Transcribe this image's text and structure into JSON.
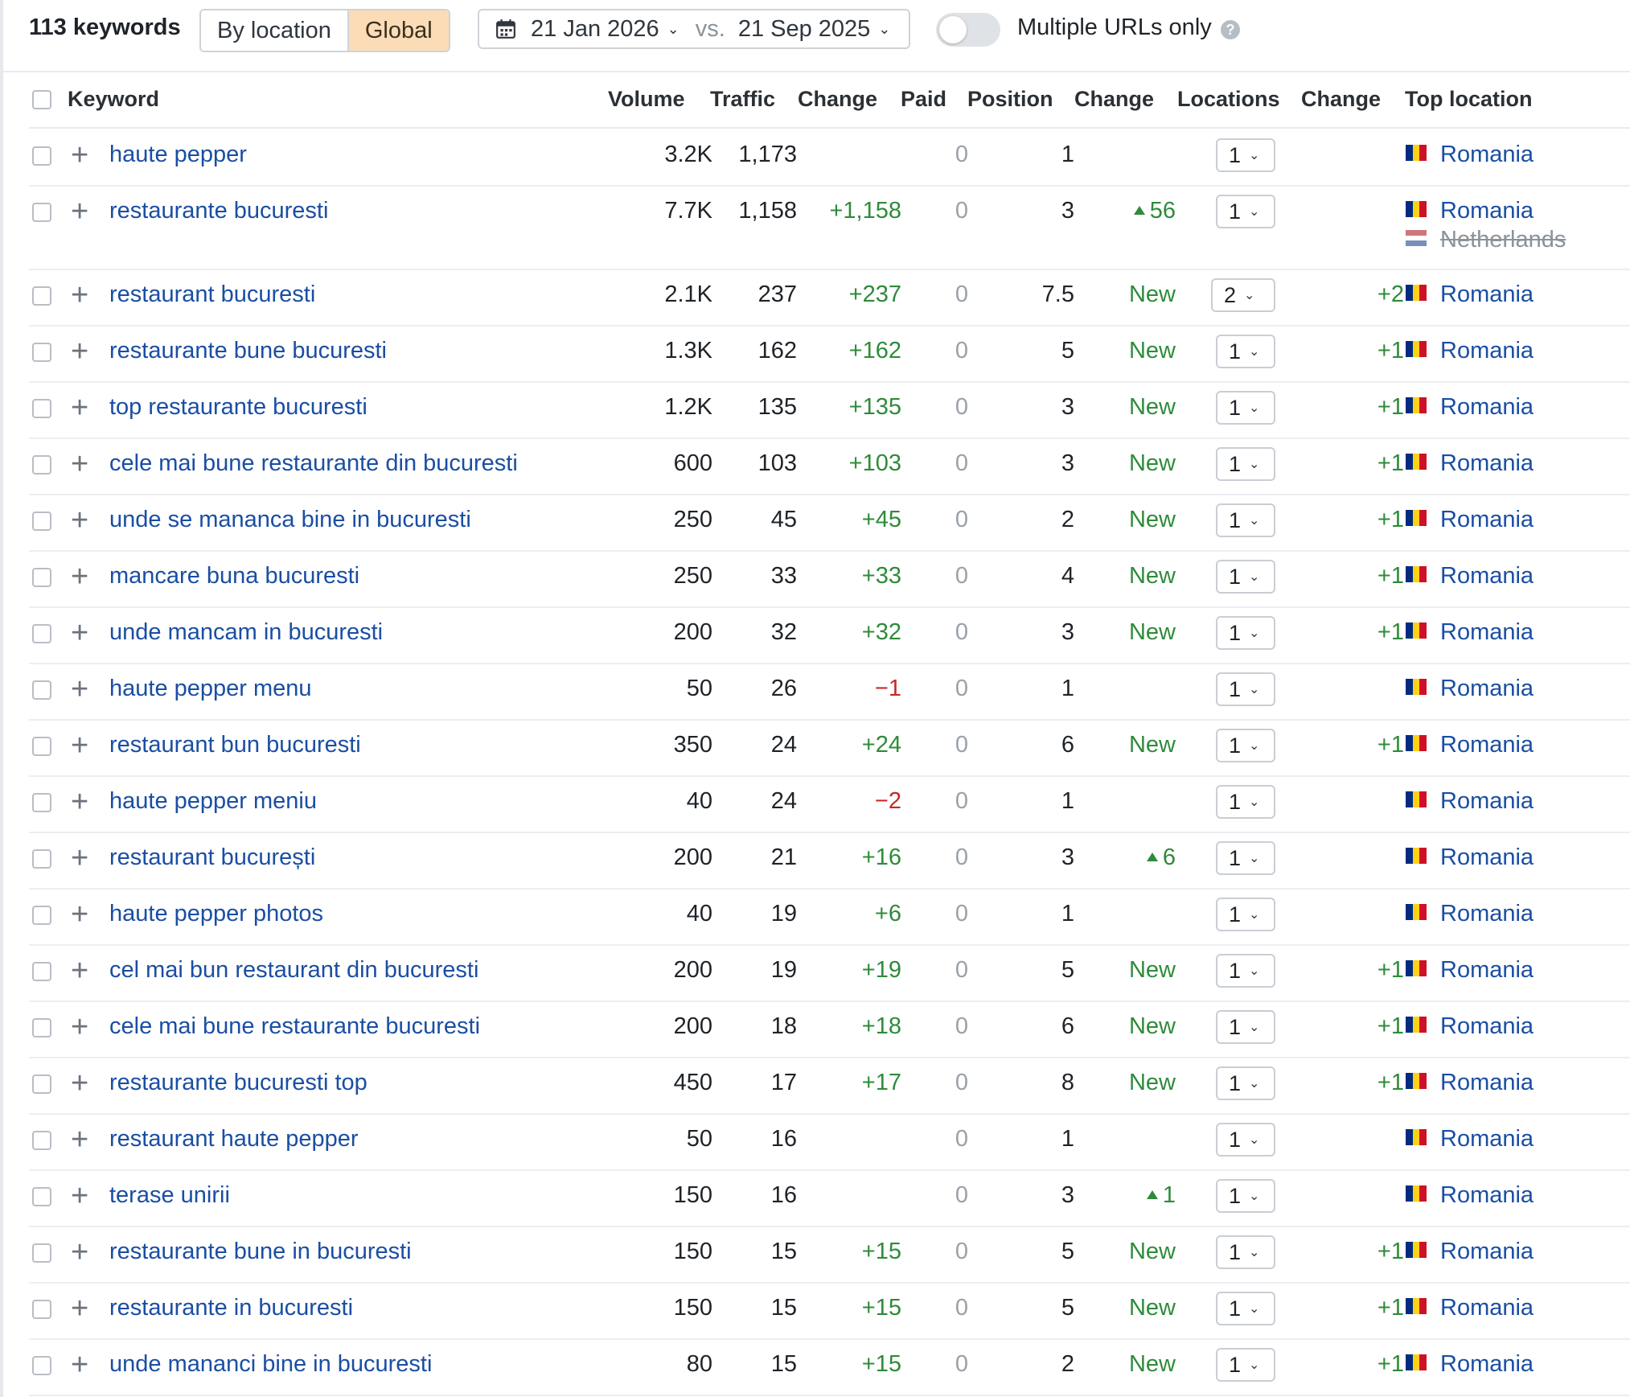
{
  "header": {
    "keyword_count": "113 keywords",
    "mode_tabs": [
      {
        "label": "By location",
        "active": false
      },
      {
        "label": "Global",
        "active": true
      }
    ],
    "date_current": "21 Jan 2026",
    "date_vs_label": "vs.",
    "date_compare": "21 Sep 2025",
    "toggle_label": "Multiple URLs only",
    "toggle_on": false,
    "help_glyph": "?"
  },
  "columns": {
    "keyword": "Keyword",
    "volume": "Volume",
    "traffic": "Traffic",
    "traffic_change": "Change",
    "paid": "Paid",
    "position": "Position",
    "position_change": "Change",
    "locations": "Locations",
    "locations_change": "Change",
    "top_location": "Top location"
  },
  "colors": {
    "accent_active": "#fbdcb7",
    "link": "#1a4ea3",
    "positive": "#2e8b3a",
    "negative": "#c62828"
  },
  "rows": [
    {
      "keyword": "haute pepper",
      "volume": "3.2K",
      "traffic": "1,173",
      "traffic_change": "",
      "paid": "0",
      "position": "1",
      "position_change": "",
      "pos_up": false,
      "locations": "1",
      "locations_change": "",
      "top_location": "Romania"
    },
    {
      "keyword": "restaurante bucuresti",
      "volume": "7.7K",
      "traffic": "1,158",
      "traffic_change": "+1,158",
      "paid": "0",
      "position": "3",
      "position_change": "56",
      "pos_up": true,
      "locations": "1",
      "locations_change": "",
      "top_location": "Romania",
      "secondary_location": "Netherlands"
    },
    {
      "keyword": "restaurant bucuresti",
      "volume": "2.1K",
      "traffic": "237",
      "traffic_change": "+237",
      "paid": "0",
      "position": "7.5",
      "position_change": "New",
      "pos_up": false,
      "locations": "2",
      "locations_change": "+2",
      "top_location": "Romania"
    },
    {
      "keyword": "restaurante bune bucuresti",
      "volume": "1.3K",
      "traffic": "162",
      "traffic_change": "+162",
      "paid": "0",
      "position": "5",
      "position_change": "New",
      "pos_up": false,
      "locations": "1",
      "locations_change": "+1",
      "top_location": "Romania"
    },
    {
      "keyword": "top restaurante bucuresti",
      "volume": "1.2K",
      "traffic": "135",
      "traffic_change": "+135",
      "paid": "0",
      "position": "3",
      "position_change": "New",
      "pos_up": false,
      "locations": "1",
      "locations_change": "+1",
      "top_location": "Romania"
    },
    {
      "keyword": "cele mai bune restaurante din bucuresti",
      "volume": "600",
      "traffic": "103",
      "traffic_change": "+103",
      "paid": "0",
      "position": "3",
      "position_change": "New",
      "pos_up": false,
      "locations": "1",
      "locations_change": "+1",
      "top_location": "Romania"
    },
    {
      "keyword": "unde se mananca bine in bucuresti",
      "volume": "250",
      "traffic": "45",
      "traffic_change": "+45",
      "paid": "0",
      "position": "2",
      "position_change": "New",
      "pos_up": false,
      "locations": "1",
      "locations_change": "+1",
      "top_location": "Romania"
    },
    {
      "keyword": "mancare buna bucuresti",
      "volume": "250",
      "traffic": "33",
      "traffic_change": "+33",
      "paid": "0",
      "position": "4",
      "position_change": "New",
      "pos_up": false,
      "locations": "1",
      "locations_change": "+1",
      "top_location": "Romania"
    },
    {
      "keyword": "unde mancam in bucuresti",
      "volume": "200",
      "traffic": "32",
      "traffic_change": "+32",
      "paid": "0",
      "position": "3",
      "position_change": "New",
      "pos_up": false,
      "locations": "1",
      "locations_change": "+1",
      "top_location": "Romania"
    },
    {
      "keyword": "haute pepper menu",
      "volume": "50",
      "traffic": "26",
      "traffic_change": "−1",
      "paid": "0",
      "position": "1",
      "position_change": "",
      "pos_up": false,
      "locations": "1",
      "locations_change": "",
      "top_location": "Romania"
    },
    {
      "keyword": "restaurant bun bucuresti",
      "volume": "350",
      "traffic": "24",
      "traffic_change": "+24",
      "paid": "0",
      "position": "6",
      "position_change": "New",
      "pos_up": false,
      "locations": "1",
      "locations_change": "+1",
      "top_location": "Romania"
    },
    {
      "keyword": "haute pepper meniu",
      "volume": "40",
      "traffic": "24",
      "traffic_change": "−2",
      "paid": "0",
      "position": "1",
      "position_change": "",
      "pos_up": false,
      "locations": "1",
      "locations_change": "",
      "top_location": "Romania"
    },
    {
      "keyword": "restaurant bucurești",
      "volume": "200",
      "traffic": "21",
      "traffic_change": "+16",
      "paid": "0",
      "position": "3",
      "position_change": "6",
      "pos_up": true,
      "locations": "1",
      "locations_change": "",
      "top_location": "Romania"
    },
    {
      "keyword": "haute pepper photos",
      "volume": "40",
      "traffic": "19",
      "traffic_change": "+6",
      "paid": "0",
      "position": "1",
      "position_change": "",
      "pos_up": false,
      "locations": "1",
      "locations_change": "",
      "top_location": "Romania"
    },
    {
      "keyword": "cel mai bun restaurant din bucuresti",
      "volume": "200",
      "traffic": "19",
      "traffic_change": "+19",
      "paid": "0",
      "position": "5",
      "position_change": "New",
      "pos_up": false,
      "locations": "1",
      "locations_change": "+1",
      "top_location": "Romania"
    },
    {
      "keyword": "cele mai bune restaurante bucuresti",
      "volume": "200",
      "traffic": "18",
      "traffic_change": "+18",
      "paid": "0",
      "position": "6",
      "position_change": "New",
      "pos_up": false,
      "locations": "1",
      "locations_change": "+1",
      "top_location": "Romania"
    },
    {
      "keyword": "restaurante bucuresti top",
      "volume": "450",
      "traffic": "17",
      "traffic_change": "+17",
      "paid": "0",
      "position": "8",
      "position_change": "New",
      "pos_up": false,
      "locations": "1",
      "locations_change": "+1",
      "top_location": "Romania"
    },
    {
      "keyword": "restaurant haute pepper",
      "volume": "50",
      "traffic": "16",
      "traffic_change": "",
      "paid": "0",
      "position": "1",
      "position_change": "",
      "pos_up": false,
      "locations": "1",
      "locations_change": "",
      "top_location": "Romania"
    },
    {
      "keyword": "terase unirii",
      "volume": "150",
      "traffic": "16",
      "traffic_change": "",
      "paid": "0",
      "position": "3",
      "position_change": "1",
      "pos_up": true,
      "locations": "1",
      "locations_change": "",
      "top_location": "Romania"
    },
    {
      "keyword": "restaurante bune in bucuresti",
      "volume": "150",
      "traffic": "15",
      "traffic_change": "+15",
      "paid": "0",
      "position": "5",
      "position_change": "New",
      "pos_up": false,
      "locations": "1",
      "locations_change": "+1",
      "top_location": "Romania"
    },
    {
      "keyword": "restaurante in bucuresti",
      "volume": "150",
      "traffic": "15",
      "traffic_change": "+15",
      "paid": "0",
      "position": "5",
      "position_change": "New",
      "pos_up": false,
      "locations": "1",
      "locations_change": "+1",
      "top_location": "Romania"
    },
    {
      "keyword": "unde mananci bine in bucuresti",
      "volume": "80",
      "traffic": "15",
      "traffic_change": "+15",
      "paid": "0",
      "position": "2",
      "position_change": "New",
      "pos_up": false,
      "locations": "1",
      "locations_change": "+1",
      "top_location": "Romania"
    }
  ]
}
